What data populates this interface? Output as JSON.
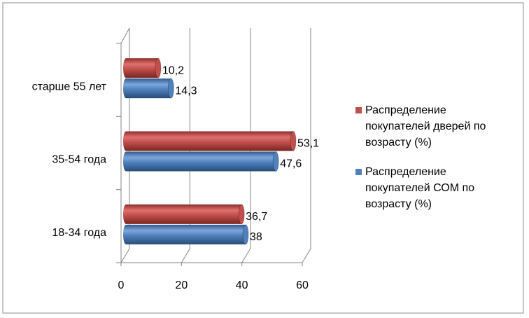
{
  "chart_data": {
    "type": "bar",
    "orientation": "horizontal",
    "categories": [
      "18-34 года",
      "35-54 года",
      "старше 55 лет"
    ],
    "series": [
      {
        "name": "Распределение покупателей дверей по возрасту (%)",
        "color": "#c0504d",
        "values": [
          36.7,
          53.1,
          10.2
        ],
        "value_labels": [
          "36,7",
          "53,1",
          "10,2"
        ]
      },
      {
        "name": "Распределение покупателей СОМ по возрасту (%)",
        "color": "#4f81bd",
        "values": [
          38,
          47.6,
          14.3
        ],
        "value_labels": [
          "38",
          "47,6",
          "14,3"
        ]
      }
    ],
    "xlim": [
      0,
      60
    ],
    "xticks": [
      0,
      20,
      40,
      60
    ],
    "grid": true,
    "legend": "right"
  }
}
